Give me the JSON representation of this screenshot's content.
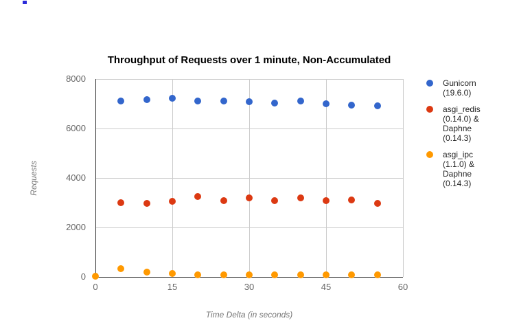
{
  "artifact": {
    "color": "#2B2BD9"
  },
  "chart_data": {
    "type": "scatter",
    "title": "Throughput of Requests over 1 minute, Non-Accumulated",
    "xlabel": "Time Delta (in seconds)",
    "ylabel": "Requests",
    "xlim": [
      0,
      60
    ],
    "ylim": [
      0,
      8000
    ],
    "x_ticks": [
      0,
      15,
      30,
      45,
      60
    ],
    "y_ticks": [
      0,
      2000,
      4000,
      6000,
      8000
    ],
    "grid": true,
    "legend_position": "right",
    "series": [
      {
        "id": "gunicorn",
        "name": "Gunicorn (19.6.0)",
        "legend_lines": [
          "Gunicorn",
          "(19.6.0)"
        ],
        "color": "#3366CC",
        "points": [
          [
            5,
            7100
          ],
          [
            10,
            7180
          ],
          [
            15,
            7210
          ],
          [
            20,
            7110
          ],
          [
            25,
            7120
          ],
          [
            30,
            7090
          ],
          [
            35,
            7040
          ],
          [
            40,
            7100
          ],
          [
            45,
            7000
          ],
          [
            50,
            6950
          ],
          [
            55,
            6930
          ]
        ]
      },
      {
        "id": "asgi-redis-daphne",
        "name": "asgi_redis (0.14.0) & Daphne (0.14.3)",
        "legend_lines": [
          "asgi_redis",
          "(0.14.0) &",
          "Daphne",
          "(0.14.3)"
        ],
        "color": "#DC3912",
        "points": [
          [
            5,
            3000
          ],
          [
            10,
            2970
          ],
          [
            15,
            3060
          ],
          [
            20,
            3250
          ],
          [
            25,
            3070
          ],
          [
            30,
            3190
          ],
          [
            35,
            3080
          ],
          [
            40,
            3200
          ],
          [
            45,
            3080
          ],
          [
            50,
            3100
          ],
          [
            55,
            2970
          ]
        ]
      },
      {
        "id": "asgi-ipc-daphne",
        "name": "asgi_ipc (1.1.0) & Daphne (0.14.3)",
        "legend_lines": [
          "asgi_ipc",
          "(1.1.0) &",
          "Daphne",
          "(0.14.3)"
        ],
        "color": "#FF9900",
        "points": [
          [
            0,
            20
          ],
          [
            5,
            330
          ],
          [
            10,
            200
          ],
          [
            15,
            130
          ],
          [
            20,
            95
          ],
          [
            25,
            85
          ],
          [
            30,
            90
          ],
          [
            35,
            75
          ],
          [
            40,
            85
          ],
          [
            45,
            75
          ],
          [
            50,
            70
          ],
          [
            55,
            75
          ]
        ]
      }
    ]
  }
}
